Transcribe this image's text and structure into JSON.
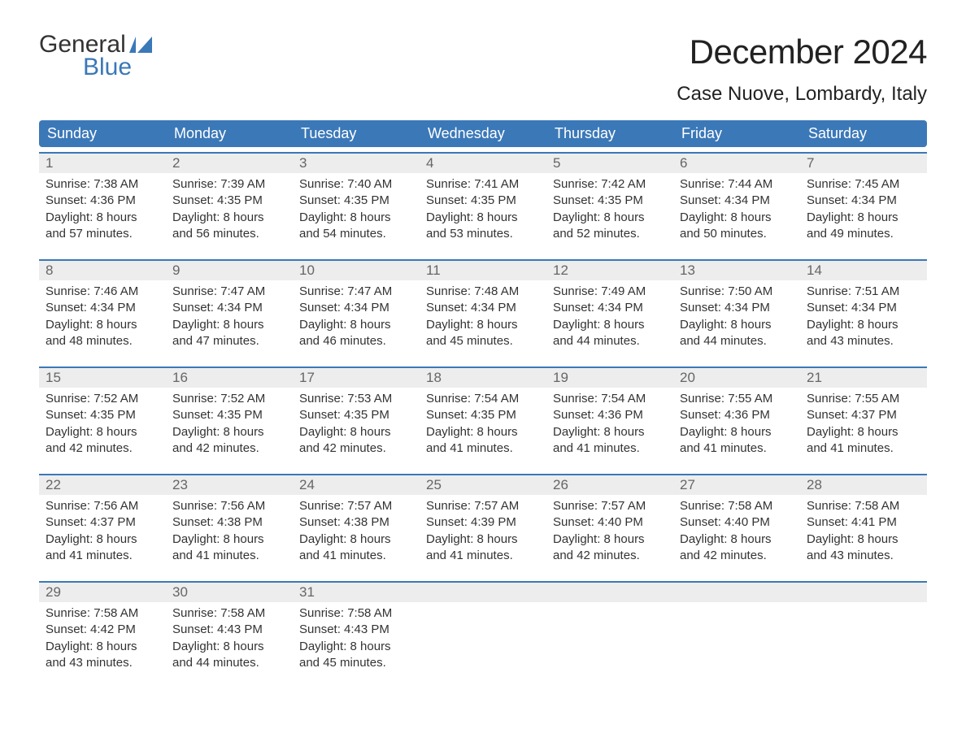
{
  "logo": {
    "word1": "General",
    "word2": "Blue"
  },
  "colors": {
    "brand_blue": "#3b78b8",
    "header_text": "#ffffff",
    "daynum_bg": "#ededed",
    "daynum_text": "#666666",
    "body_text": "#333333",
    "background": "#ffffff"
  },
  "title": "December 2024",
  "location": "Case Nuove, Lombardy, Italy",
  "day_headers": [
    "Sunday",
    "Monday",
    "Tuesday",
    "Wednesday",
    "Thursday",
    "Friday",
    "Saturday"
  ],
  "weeks": [
    [
      {
        "n": "1",
        "sunrise": "7:38 AM",
        "sunset": "4:36 PM",
        "dl1": "8 hours",
        "dl2": "and 57 minutes."
      },
      {
        "n": "2",
        "sunrise": "7:39 AM",
        "sunset": "4:35 PM",
        "dl1": "8 hours",
        "dl2": "and 56 minutes."
      },
      {
        "n": "3",
        "sunrise": "7:40 AM",
        "sunset": "4:35 PM",
        "dl1": "8 hours",
        "dl2": "and 54 minutes."
      },
      {
        "n": "4",
        "sunrise": "7:41 AM",
        "sunset": "4:35 PM",
        "dl1": "8 hours",
        "dl2": "and 53 minutes."
      },
      {
        "n": "5",
        "sunrise": "7:42 AM",
        "sunset": "4:35 PM",
        "dl1": "8 hours",
        "dl2": "and 52 minutes."
      },
      {
        "n": "6",
        "sunrise": "7:44 AM",
        "sunset": "4:34 PM",
        "dl1": "8 hours",
        "dl2": "and 50 minutes."
      },
      {
        "n": "7",
        "sunrise": "7:45 AM",
        "sunset": "4:34 PM",
        "dl1": "8 hours",
        "dl2": "and 49 minutes."
      }
    ],
    [
      {
        "n": "8",
        "sunrise": "7:46 AM",
        "sunset": "4:34 PM",
        "dl1": "8 hours",
        "dl2": "and 48 minutes."
      },
      {
        "n": "9",
        "sunrise": "7:47 AM",
        "sunset": "4:34 PM",
        "dl1": "8 hours",
        "dl2": "and 47 minutes."
      },
      {
        "n": "10",
        "sunrise": "7:47 AM",
        "sunset": "4:34 PM",
        "dl1": "8 hours",
        "dl2": "and 46 minutes."
      },
      {
        "n": "11",
        "sunrise": "7:48 AM",
        "sunset": "4:34 PM",
        "dl1": "8 hours",
        "dl2": "and 45 minutes."
      },
      {
        "n": "12",
        "sunrise": "7:49 AM",
        "sunset": "4:34 PM",
        "dl1": "8 hours",
        "dl2": "and 44 minutes."
      },
      {
        "n": "13",
        "sunrise": "7:50 AM",
        "sunset": "4:34 PM",
        "dl1": "8 hours",
        "dl2": "and 44 minutes."
      },
      {
        "n": "14",
        "sunrise": "7:51 AM",
        "sunset": "4:34 PM",
        "dl1": "8 hours",
        "dl2": "and 43 minutes."
      }
    ],
    [
      {
        "n": "15",
        "sunrise": "7:52 AM",
        "sunset": "4:35 PM",
        "dl1": "8 hours",
        "dl2": "and 42 minutes."
      },
      {
        "n": "16",
        "sunrise": "7:52 AM",
        "sunset": "4:35 PM",
        "dl1": "8 hours",
        "dl2": "and 42 minutes."
      },
      {
        "n": "17",
        "sunrise": "7:53 AM",
        "sunset": "4:35 PM",
        "dl1": "8 hours",
        "dl2": "and 42 minutes."
      },
      {
        "n": "18",
        "sunrise": "7:54 AM",
        "sunset": "4:35 PM",
        "dl1": "8 hours",
        "dl2": "and 41 minutes."
      },
      {
        "n": "19",
        "sunrise": "7:54 AM",
        "sunset": "4:36 PM",
        "dl1": "8 hours",
        "dl2": "and 41 minutes."
      },
      {
        "n": "20",
        "sunrise": "7:55 AM",
        "sunset": "4:36 PM",
        "dl1": "8 hours",
        "dl2": "and 41 minutes."
      },
      {
        "n": "21",
        "sunrise": "7:55 AM",
        "sunset": "4:37 PM",
        "dl1": "8 hours",
        "dl2": "and 41 minutes."
      }
    ],
    [
      {
        "n": "22",
        "sunrise": "7:56 AM",
        "sunset": "4:37 PM",
        "dl1": "8 hours",
        "dl2": "and 41 minutes."
      },
      {
        "n": "23",
        "sunrise": "7:56 AM",
        "sunset": "4:38 PM",
        "dl1": "8 hours",
        "dl2": "and 41 minutes."
      },
      {
        "n": "24",
        "sunrise": "7:57 AM",
        "sunset": "4:38 PM",
        "dl1": "8 hours",
        "dl2": "and 41 minutes."
      },
      {
        "n": "25",
        "sunrise": "7:57 AM",
        "sunset": "4:39 PM",
        "dl1": "8 hours",
        "dl2": "and 41 minutes."
      },
      {
        "n": "26",
        "sunrise": "7:57 AM",
        "sunset": "4:40 PM",
        "dl1": "8 hours",
        "dl2": "and 42 minutes."
      },
      {
        "n": "27",
        "sunrise": "7:58 AM",
        "sunset": "4:40 PM",
        "dl1": "8 hours",
        "dl2": "and 42 minutes."
      },
      {
        "n": "28",
        "sunrise": "7:58 AM",
        "sunset": "4:41 PM",
        "dl1": "8 hours",
        "dl2": "and 43 minutes."
      }
    ],
    [
      {
        "n": "29",
        "sunrise": "7:58 AM",
        "sunset": "4:42 PM",
        "dl1": "8 hours",
        "dl2": "and 43 minutes."
      },
      {
        "n": "30",
        "sunrise": "7:58 AM",
        "sunset": "4:43 PM",
        "dl1": "8 hours",
        "dl2": "and 44 minutes."
      },
      {
        "n": "31",
        "sunrise": "7:58 AM",
        "sunset": "4:43 PM",
        "dl1": "8 hours",
        "dl2": "and 45 minutes."
      },
      null,
      null,
      null,
      null
    ]
  ],
  "labels": {
    "sunrise_prefix": "Sunrise: ",
    "sunset_prefix": "Sunset: ",
    "daylight_prefix": "Daylight: "
  }
}
